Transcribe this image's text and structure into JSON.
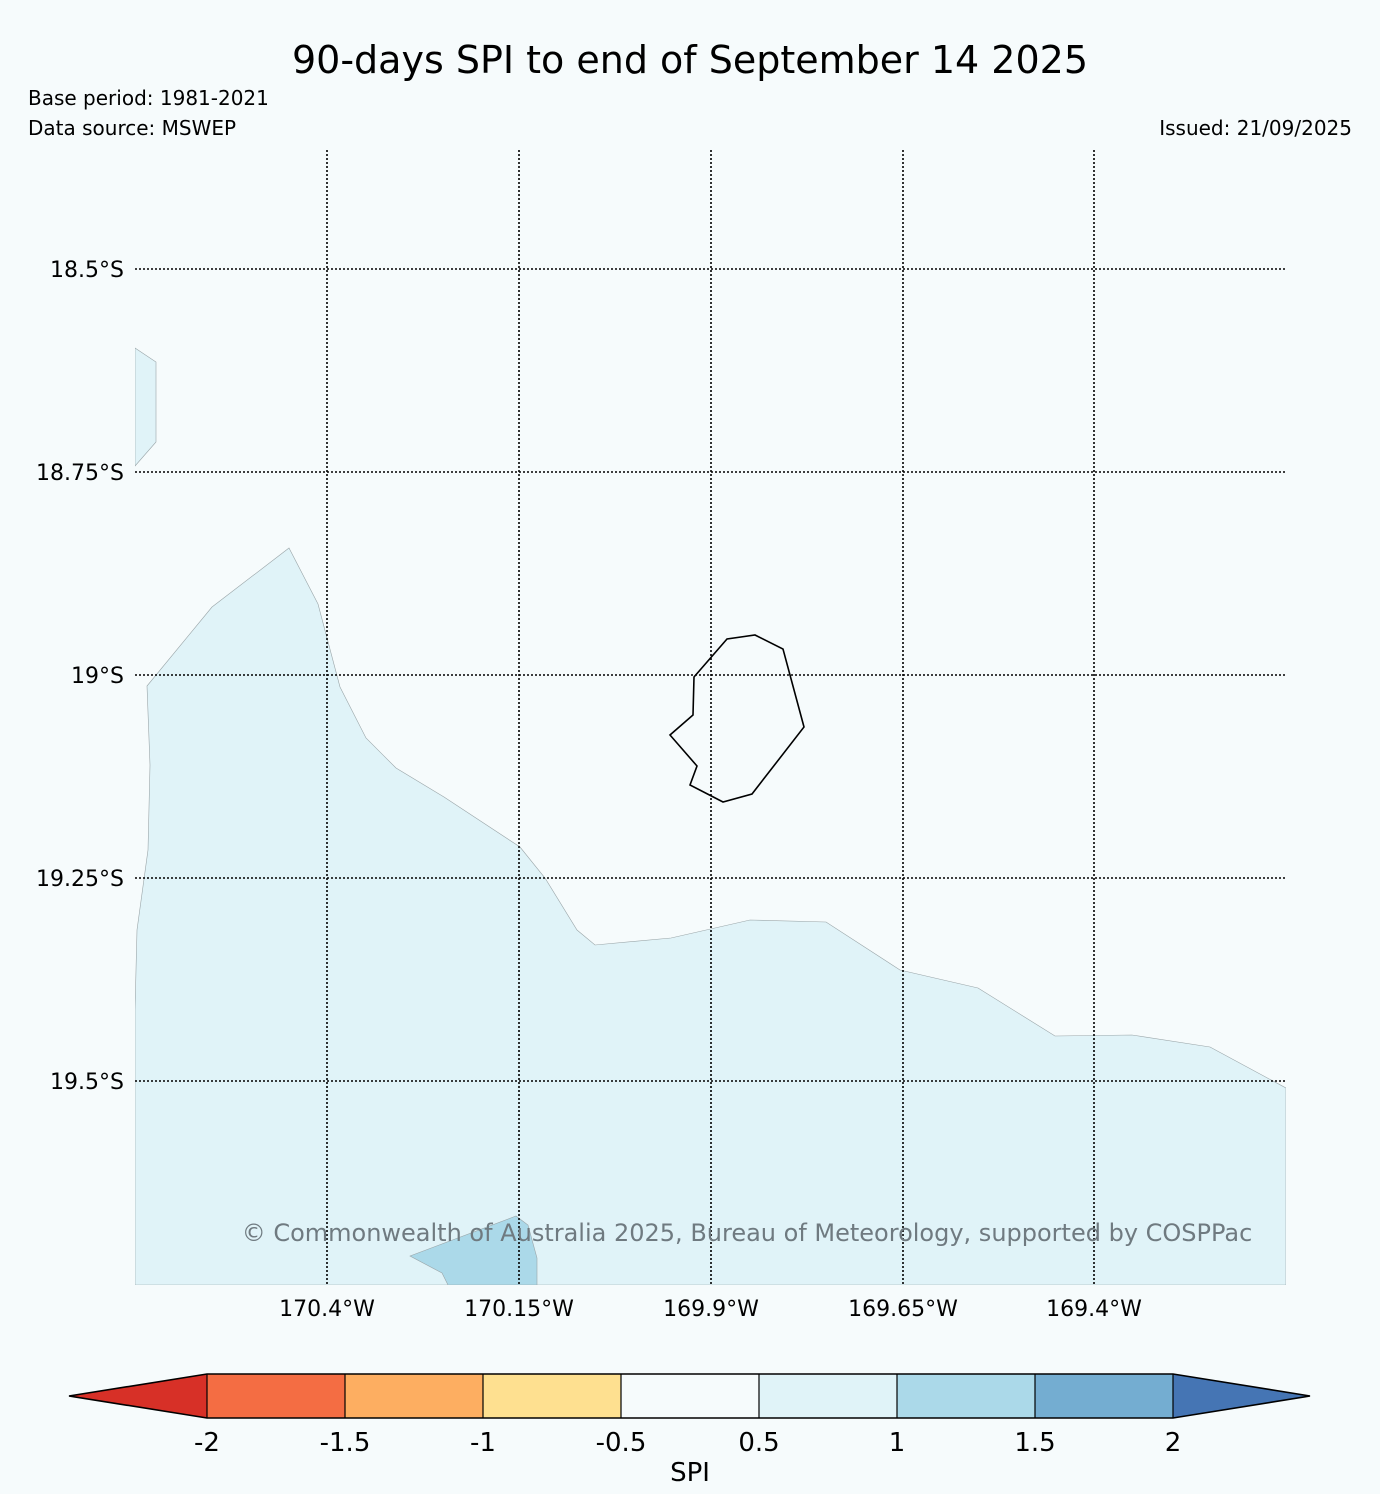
{
  "header": {
    "title": "90-days SPI to end of September 14 2025",
    "base_period": "Base period: 1981-2021",
    "data_source": "Data source: MSWEP",
    "issued": "Issued: 21/09/2025"
  },
  "map": {
    "lat_labels": [
      "18.5°S",
      "18.75°S",
      "19°S",
      "19.25°S",
      "19.5°S"
    ],
    "lon_labels": [
      "170.4°W",
      "170.15°W",
      "169.9°W",
      "169.65°W",
      "169.4°W"
    ],
    "copyright": "© Commonwealth of Australia 2025, Bureau of Meteorology, supported by COSPPac",
    "ocean_color": "#f6fbfc",
    "fill_colors": {
      "spi_0_5_to_1": "#e0f3f8",
      "spi_1_to_1_5": "#abd9e9"
    }
  },
  "legend": {
    "label": "SPI",
    "ticks": [
      "-2",
      "-1.5",
      "-1",
      "-0.5",
      "0.5",
      "1",
      "1.5",
      "2"
    ],
    "colors": [
      "#d73027",
      "#f46d43",
      "#fdae61",
      "#fee090",
      "#f6fbfc",
      "#e0f3f8",
      "#abd9e9",
      "#74add1",
      "#4575b4"
    ]
  }
}
